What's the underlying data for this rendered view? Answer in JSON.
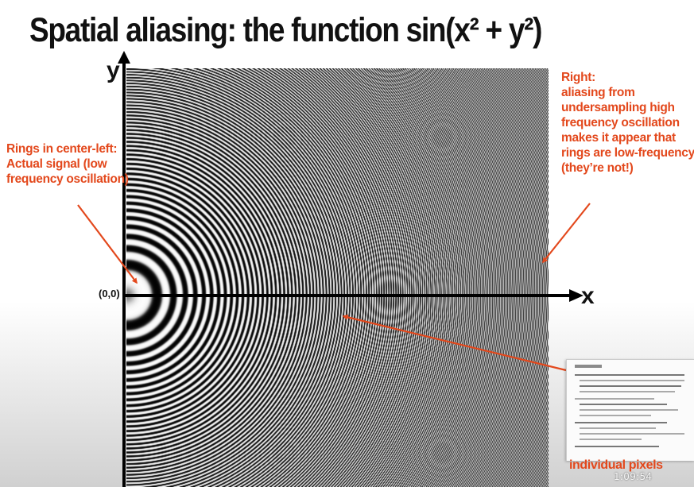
{
  "title": "Spatial aliasing: the function sin(x² + y²)",
  "axes": {
    "y_label": "y",
    "x_label": "x",
    "origin_label": "(0,0)"
  },
  "annotations": {
    "left": {
      "lines": [
        "Rings in center-left:",
        "Actual signal (low",
        "frequency oscillation)"
      ]
    },
    "right": {
      "lines": [
        "Right:",
        "aliasing from",
        "undersampling high",
        "frequency oscillation",
        "makes it appear that",
        "rings are low-frequency",
        "(they’re not!)"
      ]
    }
  },
  "inset": {
    "caption": "individual pixels"
  },
  "video": {
    "timestamp": "1:09:54"
  },
  "colors": {
    "annotation": "#e3481c",
    "axis": "#000000"
  }
}
